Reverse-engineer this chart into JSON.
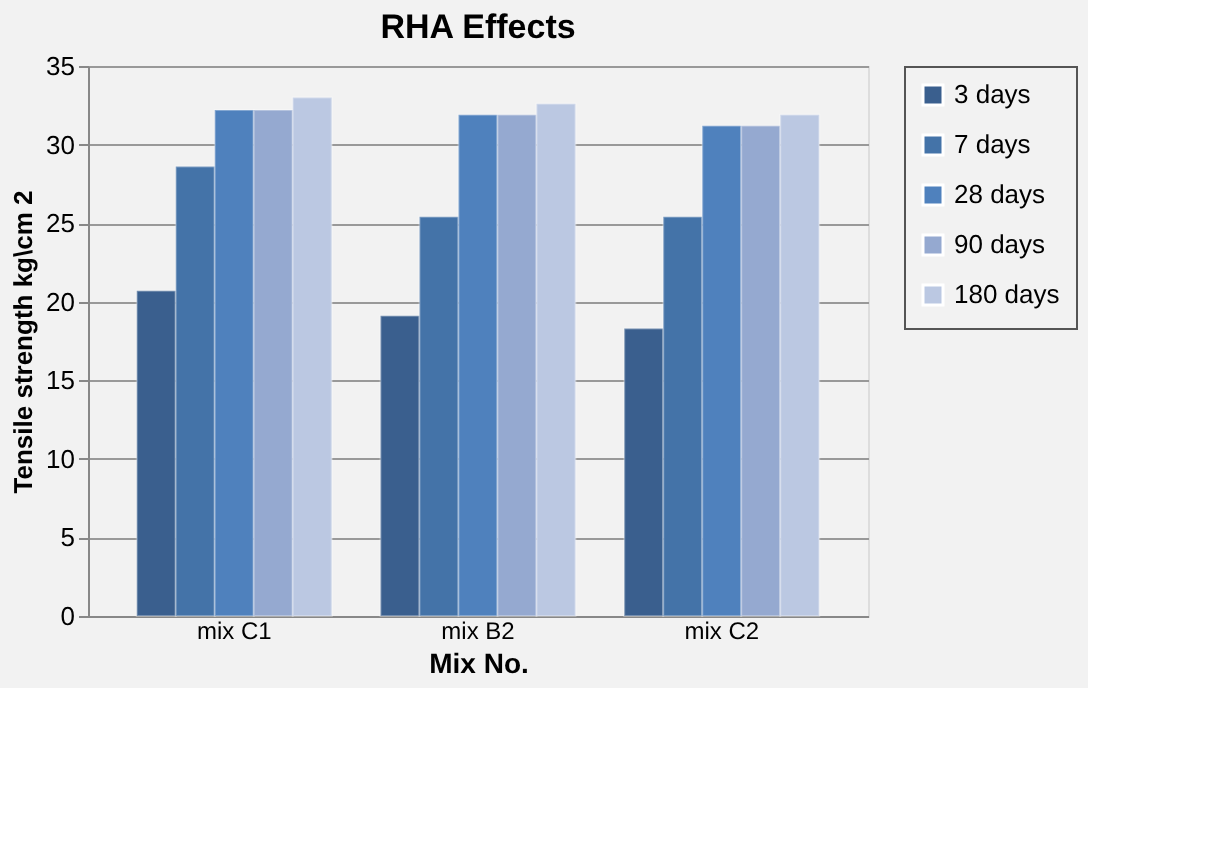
{
  "chart_data": {
    "type": "bar",
    "title": "RHA Effects",
    "xlabel": "Mix No.",
    "ylabel": "Tensile strength  kg\\cm 2",
    "categories": [
      "mix C1",
      "mix B2",
      "mix C2"
    ],
    "series": [
      {
        "name": "3 days",
        "color": "#3a5f8e",
        "values": [
          20.7,
          19.1,
          18.3
        ]
      },
      {
        "name": "7 days",
        "color": "#4473a8",
        "values": [
          28.6,
          25.4,
          25.4
        ]
      },
      {
        "name": "28 days",
        "color": "#4f81bd",
        "values": [
          32.2,
          31.9,
          31.2
        ]
      },
      {
        "name": "90 days",
        "color": "#95a9d0",
        "values": [
          32.2,
          31.9,
          31.2
        ]
      },
      {
        "name": "180 days",
        "color": "#bbc8e2",
        "values": [
          33.0,
          32.6,
          31.9
        ]
      }
    ],
    "ylim": [
      0,
      35
    ],
    "yticks": [
      0,
      5,
      10,
      15,
      20,
      25,
      30,
      35
    ],
    "grid": "y",
    "legend": "right"
  }
}
